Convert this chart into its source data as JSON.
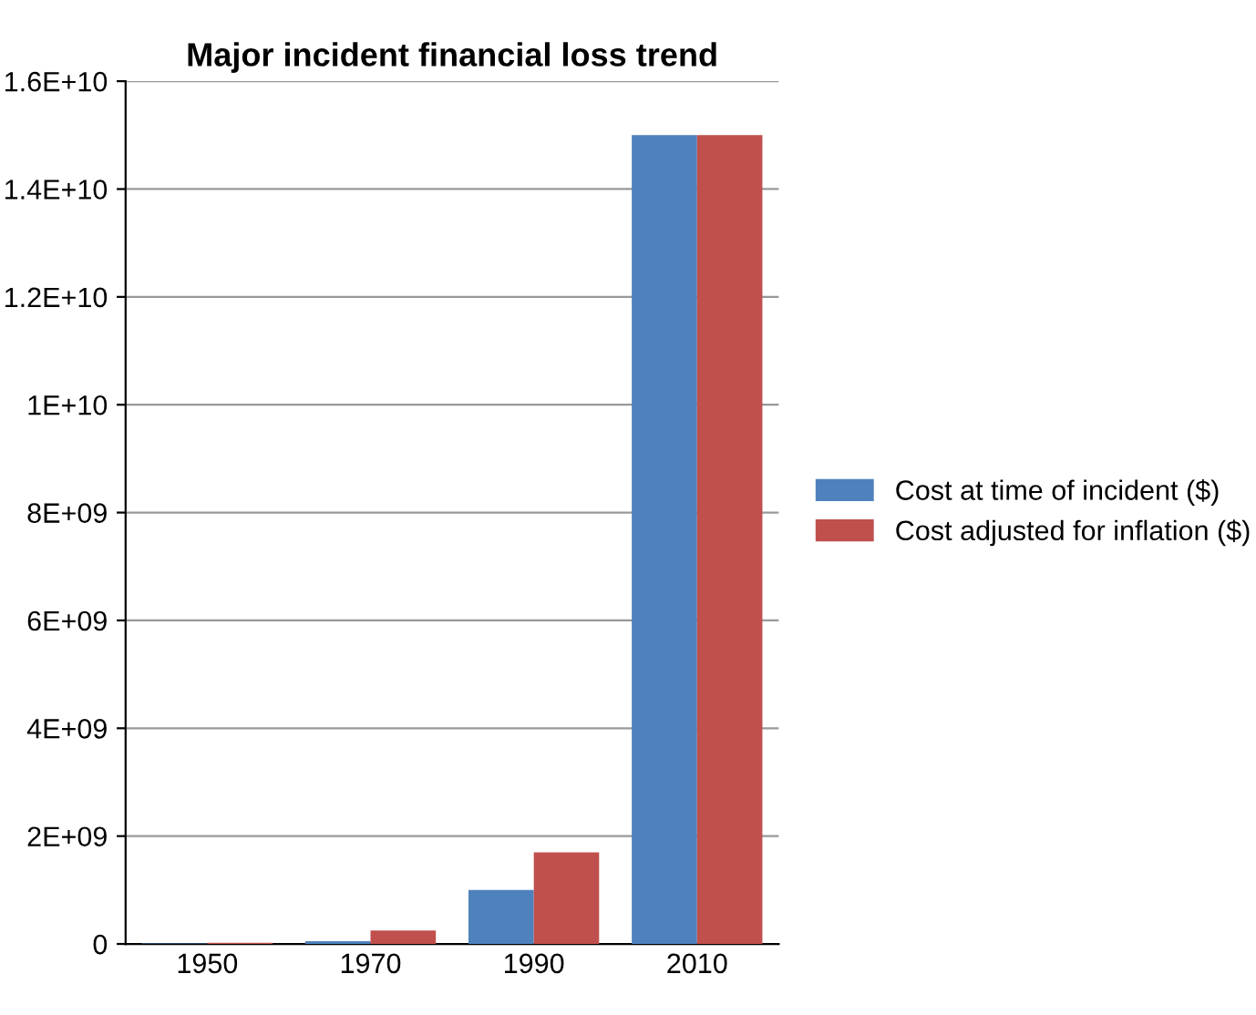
{
  "chart_data": {
    "type": "bar",
    "title": "Major incident financial loss trend",
    "categories": [
      "1950",
      "1970",
      "1990",
      "2010"
    ],
    "series": [
      {
        "name": "Cost at time of incident ($)",
        "color": "#4f81bd",
        "values": [
          10000000,
          50000000,
          1000000000,
          15000000000
        ]
      },
      {
        "name": "Cost adjusted for inflation ($)",
        "color": "#c0504d",
        "values": [
          20000000,
          250000000,
          1700000000,
          15000000000
        ]
      }
    ],
    "ylim": [
      0,
      16000000000
    ],
    "yticks": [
      {
        "value": 0,
        "label": "0"
      },
      {
        "value": 2000000000,
        "label": "2E+09"
      },
      {
        "value": 4000000000,
        "label": "4E+09"
      },
      {
        "value": 6000000000,
        "label": "6E+09"
      },
      {
        "value": 8000000000,
        "label": "8E+09"
      },
      {
        "value": 10000000000,
        "label": "1E+10"
      },
      {
        "value": 12000000000,
        "label": "1.2E+10"
      },
      {
        "value": 14000000000,
        "label": "1.4E+10"
      },
      {
        "value": 16000000000,
        "label": "1.6E+10"
      }
    ],
    "grid": "y",
    "legend": "right"
  }
}
